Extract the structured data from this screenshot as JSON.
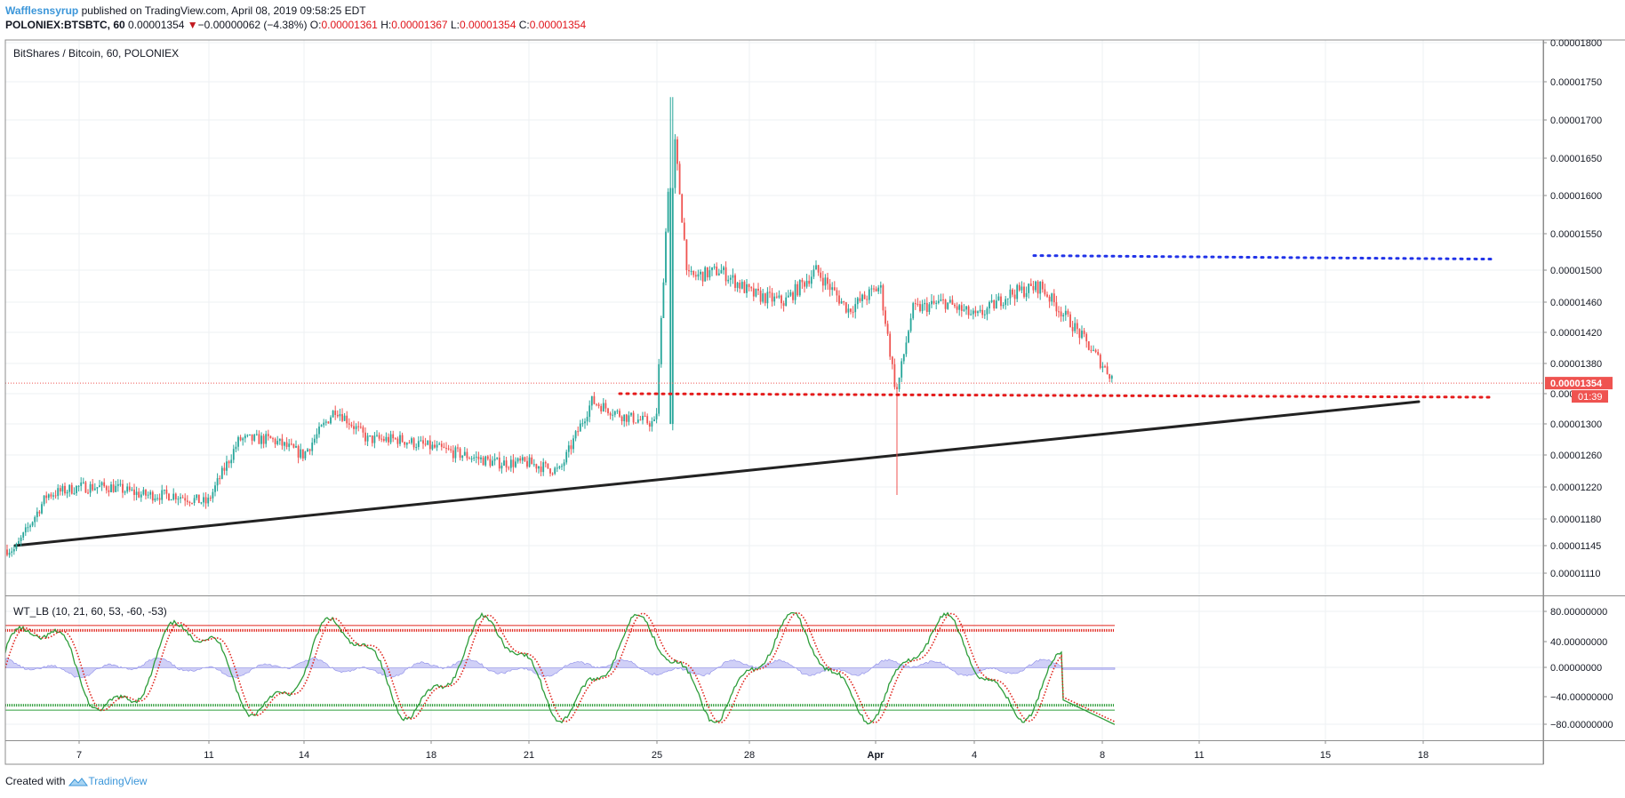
{
  "header": {
    "user": "Wafflesnsyrup",
    "published": "published on TradingView.com, April 08, 2019 09:58:25 EDT",
    "symbol": "POLONIEX:BTSBTC, 60",
    "last": "0.00001354",
    "change_arrow": "▼",
    "change": "−0.00000062 (−4.38%)",
    "o_label": "O:",
    "o_value": "0.00001361",
    "h_label": "H:",
    "h_value": "0.00001367",
    "l_label": "L:",
    "l_value": "0.00001354",
    "c_label": "C:",
    "c_value": "0.00001354"
  },
  "footer": {
    "created_with": "Created with",
    "brand": "TradingView",
    "brand_icon": "tradingview-logo-icon"
  },
  "colors": {
    "up": "#26a69a",
    "down": "#ef5350",
    "grid": "#eef0f3",
    "border": "#8c8c8c",
    "trend": "#222222",
    "resistance_dots": "#2133e8",
    "support_dots": "#e41c1c",
    "price_badge": "#ef5350",
    "wt_green": "#2e9d3a",
    "wt_red": "#e0241c",
    "wt_area": "#a9a9f0"
  },
  "chart_data": [
    {
      "type": "candlestick",
      "title": "BitShares / Bitcoin, 60, POLONIEX",
      "x_ticks": [
        "7",
        "11",
        "14",
        "18",
        "21",
        "25",
        "28",
        "Apr",
        "4",
        "8",
        "11",
        "15",
        "18"
      ],
      "y_ticks": [
        "0.00001800",
        "0.00001750",
        "0.00001700",
        "0.00001650",
        "0.00001600",
        "0.00001550",
        "0.00001500",
        "0.00001460",
        "0.00001420",
        "0.00001380",
        "0.00001340",
        "0.00001300",
        "0.00001260",
        "0.00001220",
        "0.00001180",
        "0.00001145",
        "0.00001110"
      ],
      "y_range": [
        1.08e-05,
        1.82e-05
      ],
      "last_price": "0.00001354",
      "countdown": "01:39",
      "price_path": [
        [
          "Mar 5",
          1.14e-05
        ],
        [
          "Mar 6",
          1.21e-05
        ],
        [
          "Mar 7",
          1.22e-05
        ],
        [
          "Mar 8",
          1.22e-05
        ],
        [
          "Mar 9",
          1.21e-05
        ],
        [
          "Mar 10",
          1.21e-05
        ],
        [
          "Mar 11",
          1.2e-05
        ],
        [
          "Mar 12",
          1.28e-05
        ],
        [
          "Mar 13",
          1.28e-05
        ],
        [
          "Mar 14",
          1.26e-05
        ],
        [
          "Mar 15",
          1.32e-05
        ],
        [
          "Mar 16",
          1.28e-05
        ],
        [
          "Mar 17",
          1.28e-05
        ],
        [
          "Mar 18",
          1.27e-05
        ],
        [
          "Mar 19",
          1.26e-05
        ],
        [
          "Mar 20",
          1.25e-05
        ],
        [
          "Mar 21",
          1.25e-05
        ],
        [
          "Mar 22",
          1.24e-05
        ],
        [
          "Mar 23",
          1.33e-05
        ],
        [
          "Mar 24",
          1.31e-05
        ],
        [
          "Mar 25",
          1.3e-05
        ],
        [
          "Mar 25 12:00",
          1.71e-05
        ],
        [
          "Mar 26",
          1.49e-05
        ],
        [
          "Mar 27",
          1.5e-05
        ],
        [
          "Mar 28",
          1.47e-05
        ],
        [
          "Mar 29",
          1.46e-05
        ],
        [
          "Mar 30",
          1.5e-05
        ],
        [
          "Mar 31",
          1.45e-05
        ],
        [
          "Apr 1",
          1.48e-05
        ],
        [
          "Apr 1 12:00",
          1.34e-05
        ],
        [
          "Apr 2",
          1.45e-05
        ],
        [
          "Apr 3",
          1.46e-05
        ],
        [
          "Apr 4",
          1.44e-05
        ],
        [
          "Apr 5",
          1.47e-05
        ],
        [
          "Apr 6",
          1.48e-05
        ],
        [
          "Apr 7",
          1.43e-05
        ],
        [
          "Apr 8 09:00",
          1.354e-05
        ]
      ],
      "annotations": [
        {
          "kind": "trendline",
          "from": [
            "Mar 5",
            1.145e-05
          ],
          "to": [
            "Apr 18",
            1.35e-05
          ]
        },
        {
          "kind": "dotted-level",
          "color": "blue",
          "value": 1.52e-05,
          "from": "Apr 6",
          "to": "Apr 20"
        },
        {
          "kind": "dotted-level",
          "color": "red",
          "value": 1.34e-05,
          "from": "Mar 24",
          "to": "Apr 20"
        }
      ]
    },
    {
      "type": "line",
      "title": "WT_LB (10, 21, 60, 53, -60, -53)",
      "y_ticks": [
        "80.00000000",
        "40.00000000",
        "0.00000000",
        "−40.00000000",
        "−80.00000000"
      ],
      "y_range": [
        -100,
        95
      ],
      "levels": [
        60,
        53,
        -53,
        -60
      ]
    }
  ]
}
